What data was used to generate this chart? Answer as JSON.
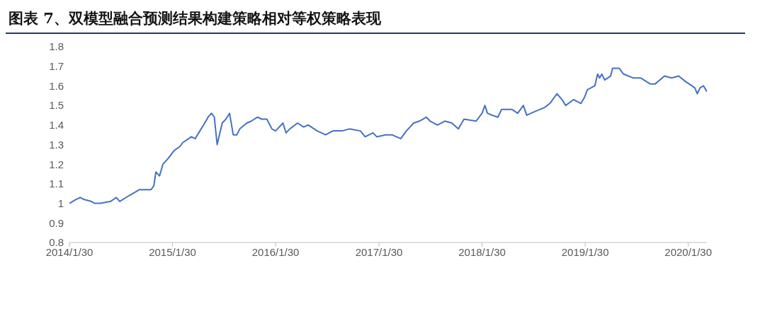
{
  "chart_data": {
    "type": "line",
    "title": "图表 7、双模型融合预测结果构建策略相对等权策略表现",
    "x": [
      "2014-01-30",
      "2014-02-22",
      "2014-03-10",
      "2014-03-22",
      "2014-04-17",
      "2014-04-30",
      "2014-05-20",
      "2014-06-25",
      "2014-07-15",
      "2014-07-27",
      "2014-08-30",
      "2014-10-05",
      "2014-10-30",
      "2014-11-15",
      "2014-11-25",
      "2014-12-02",
      "2014-12-15",
      "2014-12-27",
      "2015-01-15",
      "2015-02-05",
      "2015-02-25",
      "2015-03-07",
      "2015-04-07",
      "2015-04-20",
      "2015-05-07",
      "2015-05-20",
      "2015-06-05",
      "2015-06-17",
      "2015-06-27",
      "2015-07-07",
      "2015-07-25",
      "2015-08-07",
      "2015-08-20",
      "2015-09-02",
      "2015-09-15",
      "2015-09-25",
      "2015-10-20",
      "2015-11-05",
      "2015-11-27",
      "2015-12-12",
      "2015-12-30",
      "2016-01-17",
      "2016-01-30",
      "2016-02-25",
      "2016-03-07",
      "2016-03-20",
      "2016-04-17",
      "2016-05-08",
      "2016-05-25",
      "2016-06-25",
      "2016-07-25",
      "2016-08-20",
      "2016-09-22",
      "2016-10-17",
      "2016-11-25",
      "2016-12-12",
      "2017-01-09",
      "2017-01-22",
      "2017-02-22",
      "2017-03-17",
      "2017-04-17",
      "2017-05-07",
      "2017-06-02",
      "2017-06-22",
      "2017-07-17",
      "2017-07-30",
      "2017-08-25",
      "2017-09-20",
      "2017-10-15",
      "2017-11-07",
      "2017-11-27",
      "2018-01-09",
      "2018-01-30",
      "2018-02-09",
      "2018-02-18",
      "2018-03-07",
      "2018-03-27",
      "2018-04-09",
      "2018-05-15",
      "2018-06-05",
      "2018-06-25",
      "2018-07-07",
      "2018-08-07",
      "2018-09-09",
      "2018-09-27",
      "2018-10-22",
      "2018-11-09",
      "2018-11-22",
      "2018-12-20",
      "2019-01-15",
      "2019-01-27",
      "2019-02-07",
      "2019-03-05",
      "2019-03-15",
      "2019-03-22",
      "2019-03-30",
      "2019-04-09",
      "2019-04-30",
      "2019-05-07",
      "2019-05-30",
      "2019-06-15",
      "2019-07-20",
      "2019-08-15",
      "2019-09-17",
      "2019-10-05",
      "2019-11-07",
      "2019-12-02",
      "2019-12-27",
      "2020-01-22",
      "2020-02-12",
      "2020-02-22",
      "2020-03-02",
      "2020-03-12",
      "2020-03-24",
      "2020-04-05"
    ],
    "series": [
      {
        "color": "#4472c4",
        "values": [
          1.0,
          1.02,
          1.03,
          1.02,
          1.01,
          1.0,
          1.0,
          1.01,
          1.03,
          1.01,
          1.04,
          1.07,
          1.07,
          1.07,
          1.09,
          1.16,
          1.14,
          1.2,
          1.23,
          1.27,
          1.29,
          1.31,
          1.34,
          1.33,
          1.37,
          1.4,
          1.44,
          1.46,
          1.44,
          1.3,
          1.41,
          1.43,
          1.46,
          1.35,
          1.35,
          1.38,
          1.41,
          1.42,
          1.44,
          1.43,
          1.43,
          1.38,
          1.37,
          1.41,
          1.36,
          1.38,
          1.41,
          1.39,
          1.4,
          1.37,
          1.35,
          1.37,
          1.37,
          1.38,
          1.37,
          1.34,
          1.36,
          1.34,
          1.35,
          1.35,
          1.33,
          1.37,
          1.41,
          1.42,
          1.44,
          1.42,
          1.4,
          1.42,
          1.41,
          1.38,
          1.43,
          1.42,
          1.46,
          1.5,
          1.46,
          1.45,
          1.44,
          1.48,
          1.48,
          1.46,
          1.5,
          1.45,
          1.47,
          1.49,
          1.51,
          1.56,
          1.53,
          1.5,
          1.53,
          1.51,
          1.54,
          1.58,
          1.6,
          1.66,
          1.64,
          1.66,
          1.63,
          1.65,
          1.69,
          1.69,
          1.66,
          1.64,
          1.64,
          1.61,
          1.61,
          1.65,
          1.64,
          1.65,
          1.62,
          1.6,
          1.59,
          1.56,
          1.59,
          1.6,
          1.57
        ]
      }
    ],
    "xlim": [
      "2014-01-30",
      "2020-04-05"
    ],
    "xticks": [
      {
        "value": "2014-01-30",
        "label": "2014/1/30"
      },
      {
        "value": "2015-01-30",
        "label": "2015/1/30"
      },
      {
        "value": "2016-01-30",
        "label": "2016/1/30"
      },
      {
        "value": "2017-01-30",
        "label": "2017/1/30"
      },
      {
        "value": "2018-01-30",
        "label": "2018/1/30"
      },
      {
        "value": "2019-01-30",
        "label": "2019/1/30"
      },
      {
        "value": "2020-01-30",
        "label": "2020/1/30"
      }
    ],
    "ylim": [
      0.8,
      1.8
    ],
    "yticks": [
      0.8,
      0.9,
      1,
      1.1,
      1.2,
      1.3,
      1.4,
      1.5,
      1.6,
      1.7,
      1.8
    ],
    "grid": false,
    "legend": false,
    "marker": "none",
    "line_style": "solid"
  }
}
